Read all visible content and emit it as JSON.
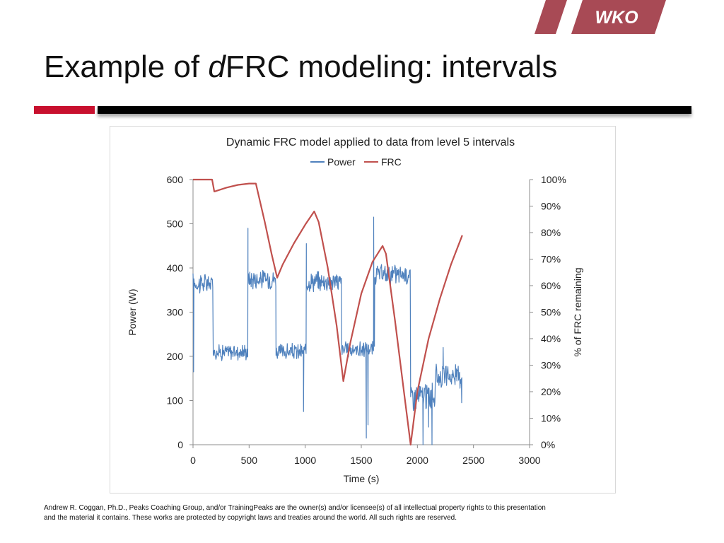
{
  "slide": {
    "logo_text": "WKO",
    "title_prefix": "Example of ",
    "title_italic": "d",
    "title_suffix": "FRC modeling: intervals",
    "footer": "Andrew R. Coggan, Ph.D., Peaks Coaching Group, and/or TrainingPeaks are the owner(s) and/or licensee(s) of all intellectual property rights to this presentation and the material it contains. These works are protected by copyright laws and treaties around the world. All such rights are reserved.",
    "colors": {
      "brand_red": "#c8102e",
      "logo_red": "#a84a55"
    }
  },
  "chart_data": {
    "type": "line",
    "title": "Dynamic FRC model applied to data from level 5 intervals",
    "xlabel": "Time (s)",
    "ylabel": "Power (W)",
    "y2label": "% of FRC remaining",
    "xlim": [
      0,
      3000
    ],
    "ylim": [
      0,
      600
    ],
    "y2lim": [
      0,
      100
    ],
    "x_ticks": [
      "0",
      "500",
      "1000",
      "1500",
      "2000",
      "2500",
      "3000"
    ],
    "y_ticks": [
      "0",
      "100",
      "200",
      "300",
      "400",
      "500",
      "600"
    ],
    "y2_ticks": [
      "0%",
      "10%",
      "20%",
      "30%",
      "40%",
      "50%",
      "60%",
      "70%",
      "80%",
      "90%",
      "100%"
    ],
    "grid": false,
    "legend": "top-center",
    "series": [
      {
        "name": "Power",
        "axis": "left",
        "color": "#4f81bd",
        "segments": [
          {
            "start": 0,
            "end": 180,
            "mean": 365,
            "noise": 20
          },
          {
            "start": 180,
            "end": 490,
            "mean": 210,
            "noise": 15
          },
          {
            "start": 490,
            "end": 740,
            "mean": 375,
            "noise": 18
          },
          {
            "start": 740,
            "end": 1010,
            "mean": 210,
            "noise": 15
          },
          {
            "start": 1010,
            "end": 1325,
            "mean": 370,
            "noise": 18
          },
          {
            "start": 1325,
            "end": 1620,
            "mean": 215,
            "noise": 15
          },
          {
            "start": 1620,
            "end": 1940,
            "mean": 385,
            "noise": 18
          },
          {
            "start": 1940,
            "end": 2160,
            "mean": 110,
            "noise": 25
          },
          {
            "start": 2160,
            "end": 2400,
            "mean": 155,
            "noise": 20
          }
        ],
        "spikes": [
          {
            "x": 5,
            "y": 165
          },
          {
            "x": 490,
            "y": 490
          },
          {
            "x": 1010,
            "y": 455
          },
          {
            "x": 1610,
            "y": 515
          },
          {
            "x": 985,
            "y": 75
          },
          {
            "x": 1545,
            "y": 15
          },
          {
            "x": 1560,
            "y": 45
          },
          {
            "x": 2050,
            "y": 0
          },
          {
            "x": 2100,
            "y": 40
          },
          {
            "x": 2130,
            "y": 0
          },
          {
            "x": 2230,
            "y": 220
          },
          {
            "x": 2395,
            "y": 95
          }
        ]
      },
      {
        "name": "FRC",
        "axis": "right",
        "color": "#c0504d",
        "x": [
          0,
          170,
          190,
          300,
          400,
          500,
          560,
          640,
          700,
          750,
          800,
          900,
          1000,
          1080,
          1120,
          1200,
          1280,
          1340,
          1400,
          1500,
          1600,
          1690,
          1720,
          1800,
          1880,
          1940,
          2000,
          2100,
          2200,
          2300,
          2400
        ],
        "y": [
          100,
          100,
          95.5,
          97,
          98,
          98.5,
          98.5,
          84,
          72,
          63,
          68,
          76,
          83,
          88,
          84,
          67,
          45,
          24,
          38,
          57,
          69,
          75,
          72,
          47,
          20,
          0,
          20,
          40,
          55,
          68,
          79
        ]
      }
    ]
  }
}
